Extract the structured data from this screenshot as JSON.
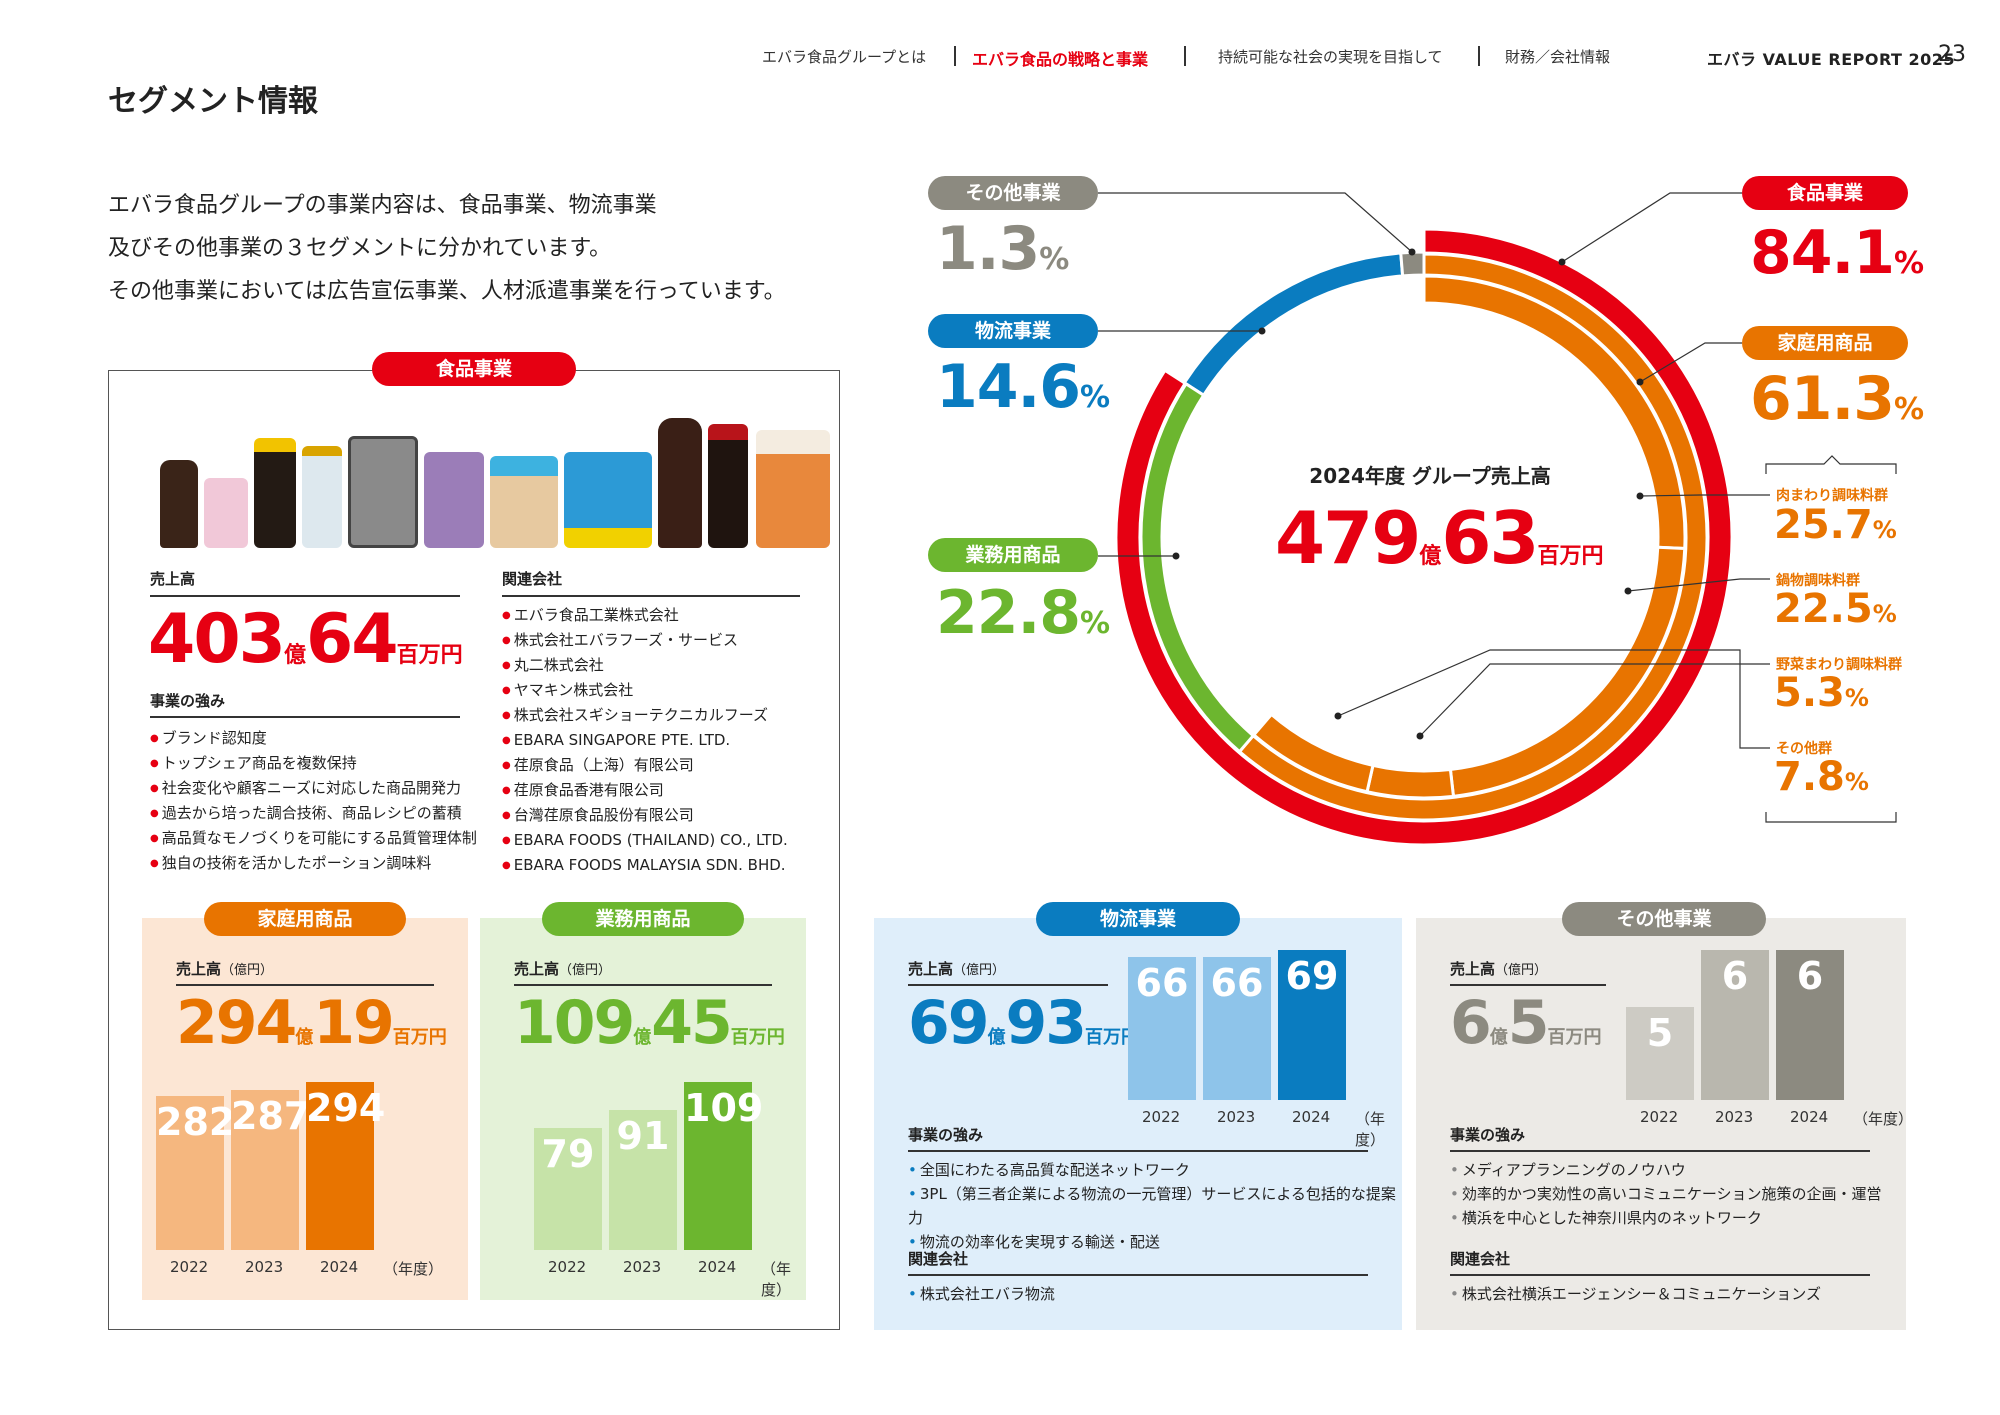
{
  "header": {
    "nav": [
      "エバラ食品グループとは",
      "エバラ食品の戦略と事業",
      "持続可能な社会の実現を目指して",
      "財務／会社情報"
    ],
    "report": "エバラ VALUE REPORT 2025",
    "page": "23"
  },
  "title": "セグメント情報",
  "intro": [
    "エバラ食品グループの事業内容は、食品事業、物流事業",
    "及びその他事業の３セグメントに分かれています。",
    "その他事業においては広告宣伝事業、人材派遣事業を行っています。"
  ],
  "colors": {
    "red": "#e60012",
    "orange": "#e87400",
    "green": "#6cb62f",
    "blue": "#0a7cc0",
    "gray": "#8c8a80"
  },
  "food": {
    "pill": "食品事業",
    "sales_label": "売上高",
    "sales_oku": "403",
    "oku_unit": "億",
    "sales_man": "64",
    "man_unit": "百万円",
    "strength_label": "事業の強み",
    "strengths": [
      "ブランド認知度",
      "トップシェア商品を複数保持",
      "社会変化や顧客ニーズに対応した商品開発力",
      "過去から培った調合技術、商品レシピの蓄積",
      "高品質なモノづくりを可能にする品質管理体制",
      "独自の技術を活かしたポーション調味料"
    ],
    "affiliates_label": "関連会社",
    "affiliates": [
      "エバラ食品工業株式会社",
      "株式会社エバラフーズ・サービス",
      "丸二株式会社",
      "ヤマキン株式会社",
      "株式会社スギショーテクニカルフーズ",
      "EBARA SINGAPORE PTE. LTD.",
      "荏原食品（上海）有限公司",
      "荏原食品香港有限公司",
      "台灣荏原食品股份有限公司",
      "EBARA FOODS (THAILAND) CO., LTD.",
      "EBARA FOODS MALAYSIA SDN. BHD."
    ]
  },
  "household": {
    "pill": "家庭用商品",
    "sales_label": "売上高",
    "sales_unit": "（億円）",
    "oku": "294",
    "man": "19",
    "oku_unit": "億",
    "man_unit": "百万円",
    "years": [
      "2022",
      "2023",
      "2024"
    ],
    "values": [
      282,
      287,
      294
    ],
    "year_unit": "（年度）"
  },
  "commercial": {
    "pill": "業務用商品",
    "sales_label": "売上高",
    "sales_unit": "（億円）",
    "oku": "109",
    "man": "45",
    "oku_unit": "億",
    "man_unit": "百万円",
    "years": [
      "2022",
      "2023",
      "2024"
    ],
    "values": [
      79,
      91,
      109
    ],
    "year_unit": "（年度）"
  },
  "logistics": {
    "pill": "物流事業",
    "sales_label": "売上高",
    "sales_unit": "（億円）",
    "oku": "69",
    "man": "93",
    "oku_unit": "億",
    "man_unit": "百万円",
    "years": [
      "2022",
      "2023",
      "2024"
    ],
    "values": [
      66,
      66,
      69
    ],
    "year_unit": "（年度）",
    "strength_label": "事業の強み",
    "strengths": [
      "全国にわたる高品質な配送ネットワーク",
      "3PL（第三者企業による物流の一元管理）サービスによる包括的な提案力",
      "物流の効率化を実現する輸送・配送"
    ],
    "affiliates_label": "関連会社",
    "affiliates": [
      "株式会社エバラ物流"
    ]
  },
  "other": {
    "pill": "その他事業",
    "sales_label": "売上高",
    "sales_unit": "（億円）",
    "oku": "6",
    "man": "5",
    "oku_unit": "億",
    "man_unit": "百万円",
    "years": [
      "2022",
      "2023",
      "2024"
    ],
    "values": [
      5,
      6,
      6
    ],
    "year_unit": "（年度）",
    "strength_label": "事業の強み",
    "strengths": [
      "メディアプランニングのノウハウ",
      "効率的かつ実効性の高いコミュニケーション施策の企画・運営",
      "横浜を中心とした神奈川県内のネットワーク"
    ],
    "affiliates_label": "関連会社",
    "affiliates": [
      "株式会社横浜エージェンシー＆コミュニケーションズ"
    ]
  },
  "donut": {
    "center_title": "2024年度 グループ売上高",
    "center_oku": "479",
    "oku_unit": "億",
    "center_man": "63",
    "man_unit": "百万円",
    "pct_unit": "%",
    "segments": [
      {
        "name": "食品事業",
        "pct": "84.1"
      },
      {
        "name": "家庭用商品",
        "pct": "61.3"
      },
      {
        "name": "業務用商品",
        "pct": "22.8"
      },
      {
        "name": "物流事業",
        "pct": "14.6"
      },
      {
        "name": "その他事業",
        "pct": "1.3"
      }
    ],
    "subs": [
      {
        "name": "肉まわり調味料群",
        "pct": "25.7"
      },
      {
        "name": "鍋物調味料群",
        "pct": "22.5"
      },
      {
        "name": "野菜まわり調味料群",
        "pct": "5.3"
      },
      {
        "name": "その他群",
        "pct": "7.8"
      }
    ]
  },
  "chart_data": [
    {
      "type": "pie",
      "title": "2024年度 グループ売上高",
      "categories": [
        "食品事業",
        "物流事業",
        "その他事業"
      ],
      "values": [
        84.1,
        14.6,
        1.3
      ],
      "inner_ring": {
        "categories": [
          "家庭用商品",
          "業務用商品"
        ],
        "values": [
          61.3,
          22.8
        ]
      },
      "innermost_ring": {
        "categories": [
          "肉まわり調味料群",
          "鍋物調味料群",
          "野菜まわり調味料群",
          "その他群"
        ],
        "values": [
          25.7,
          22.5,
          5.3,
          7.8
        ]
      }
    },
    {
      "type": "bar",
      "title": "家庭用商品",
      "categories": [
        "2022",
        "2023",
        "2024"
      ],
      "values": [
        282,
        287,
        294
      ]
    },
    {
      "type": "bar",
      "title": "業務用商品",
      "categories": [
        "2022",
        "2023",
        "2024"
      ],
      "values": [
        79,
        91,
        109
      ]
    },
    {
      "type": "bar",
      "title": "物流事業",
      "categories": [
        "2022",
        "2023",
        "2024"
      ],
      "values": [
        66,
        66,
        69
      ]
    },
    {
      "type": "bar",
      "title": "その他事業",
      "categories": [
        "2022",
        "2023",
        "2024"
      ],
      "values": [
        5,
        6,
        6
      ]
    }
  ]
}
